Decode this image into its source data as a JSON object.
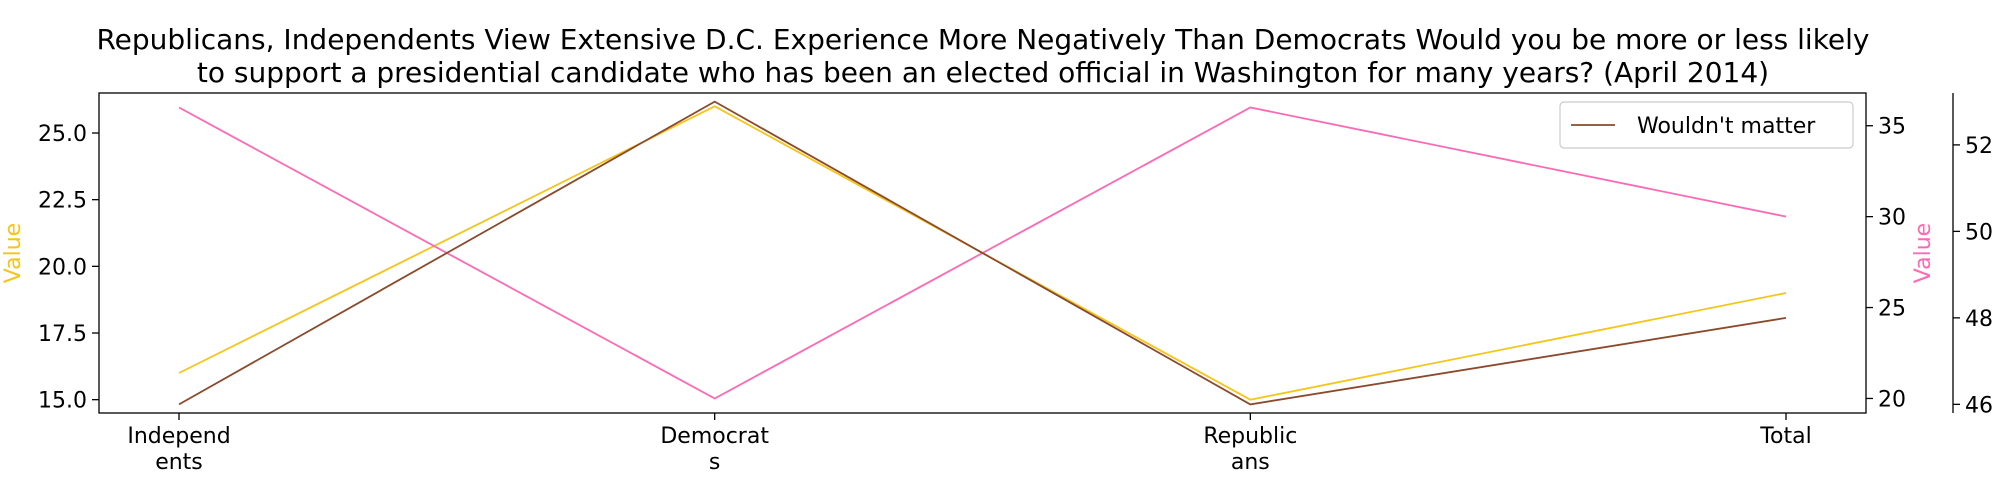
{
  "chart_data": {
    "type": "line",
    "title": "Republicans, Independents View Extensive D.C. Experience More Negatively Than Democrats Would you be more or less likely to support a presidential candidate who has been an elected official in Washington for many years? (April 2014)",
    "title_lines": [
      "Republicans, Independents View Extensive D.C. Experience More Negatively Than Democrats Would you be more or less likely",
      "to support a presidential candidate who has been an elected official in Washington for many years? (April 2014)"
    ],
    "categories": [
      "Independents",
      "Democrats",
      "Republicans",
      "Total"
    ],
    "category_tick_labels": [
      [
        "Independ",
        "ents"
      ],
      [
        "Democrat",
        "s"
      ],
      [
        "Republic",
        "ans"
      ],
      [
        "Total"
      ]
    ],
    "axes": {
      "left": {
        "label": "Value",
        "label_color": "#f5c518",
        "ylim": [
          14.5,
          26.5
        ],
        "ticks": [
          15.0,
          17.5,
          20.0,
          22.5,
          25.0
        ],
        "tick_labels": [
          "15.0",
          "17.5",
          "20.0",
          "22.5",
          "25.0"
        ]
      },
      "right1": {
        "label": "Value",
        "label_color": "#ff69b4",
        "ylim": [
          19.2,
          36.8
        ],
        "ticks": [
          20,
          25,
          30,
          35
        ],
        "tick_labels": [
          "20",
          "25",
          "30",
          "35"
        ]
      },
      "right2": {
        "label": "",
        "ylim": [
          45.8,
          53.2
        ],
        "ticks": [
          46,
          48,
          50,
          52
        ],
        "tick_labels": [
          "46",
          "48",
          "50",
          "52"
        ]
      }
    },
    "series": [
      {
        "axis": "left",
        "color": "#f5c518",
        "values": [
          16,
          26,
          15,
          19
        ]
      },
      {
        "axis": "right1",
        "color": "#ff69b4",
        "values": [
          36,
          20,
          36,
          30
        ]
      },
      {
        "name": "Wouldn't matter",
        "axis": "right2",
        "color": "#8b4a2b",
        "values": [
          46,
          53,
          46,
          48
        ]
      }
    ],
    "legend": {
      "position": "top-right",
      "entries": [
        "Wouldn't matter"
      ]
    },
    "grid": false
  }
}
